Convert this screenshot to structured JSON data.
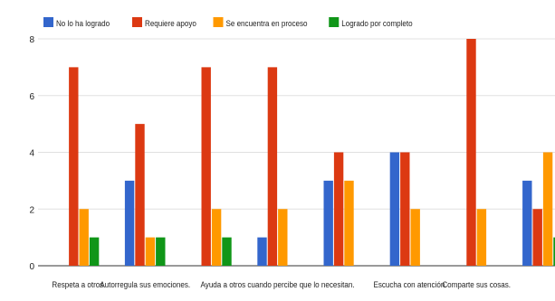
{
  "chart_data": {
    "type": "bar",
    "categories": [
      "Respeta a otros.",
      "Autorregula sus emociones.",
      "",
      "Ayuda a otros cuando percibe que lo necesitan.",
      "",
      "Escucha con atención.",
      "Comparte sus cosas.",
      ""
    ],
    "series": [
      {
        "name": "No lo ha logrado",
        "color": "#3366cc",
        "values": [
          0,
          3,
          0,
          1,
          3,
          4,
          0,
          3
        ]
      },
      {
        "name": "Requiere apoyo",
        "color": "#dc3912",
        "values": [
          7,
          5,
          7,
          7,
          4,
          4,
          8,
          2
        ]
      },
      {
        "name": "Se encuentra en proceso",
        "color": "#ff9900",
        "values": [
          2,
          1,
          2,
          2,
          3,
          2,
          2,
          4
        ]
      },
      {
        "name": "Logrado por completo",
        "color": "#109618",
        "values": [
          1,
          1,
          1,
          0,
          0,
          0,
          0,
          1
        ]
      }
    ],
    "yticks": [
      0,
      2,
      4,
      6,
      8
    ],
    "ylim": [
      0,
      8
    ],
    "grid": true,
    "legend_position": "top-left"
  }
}
